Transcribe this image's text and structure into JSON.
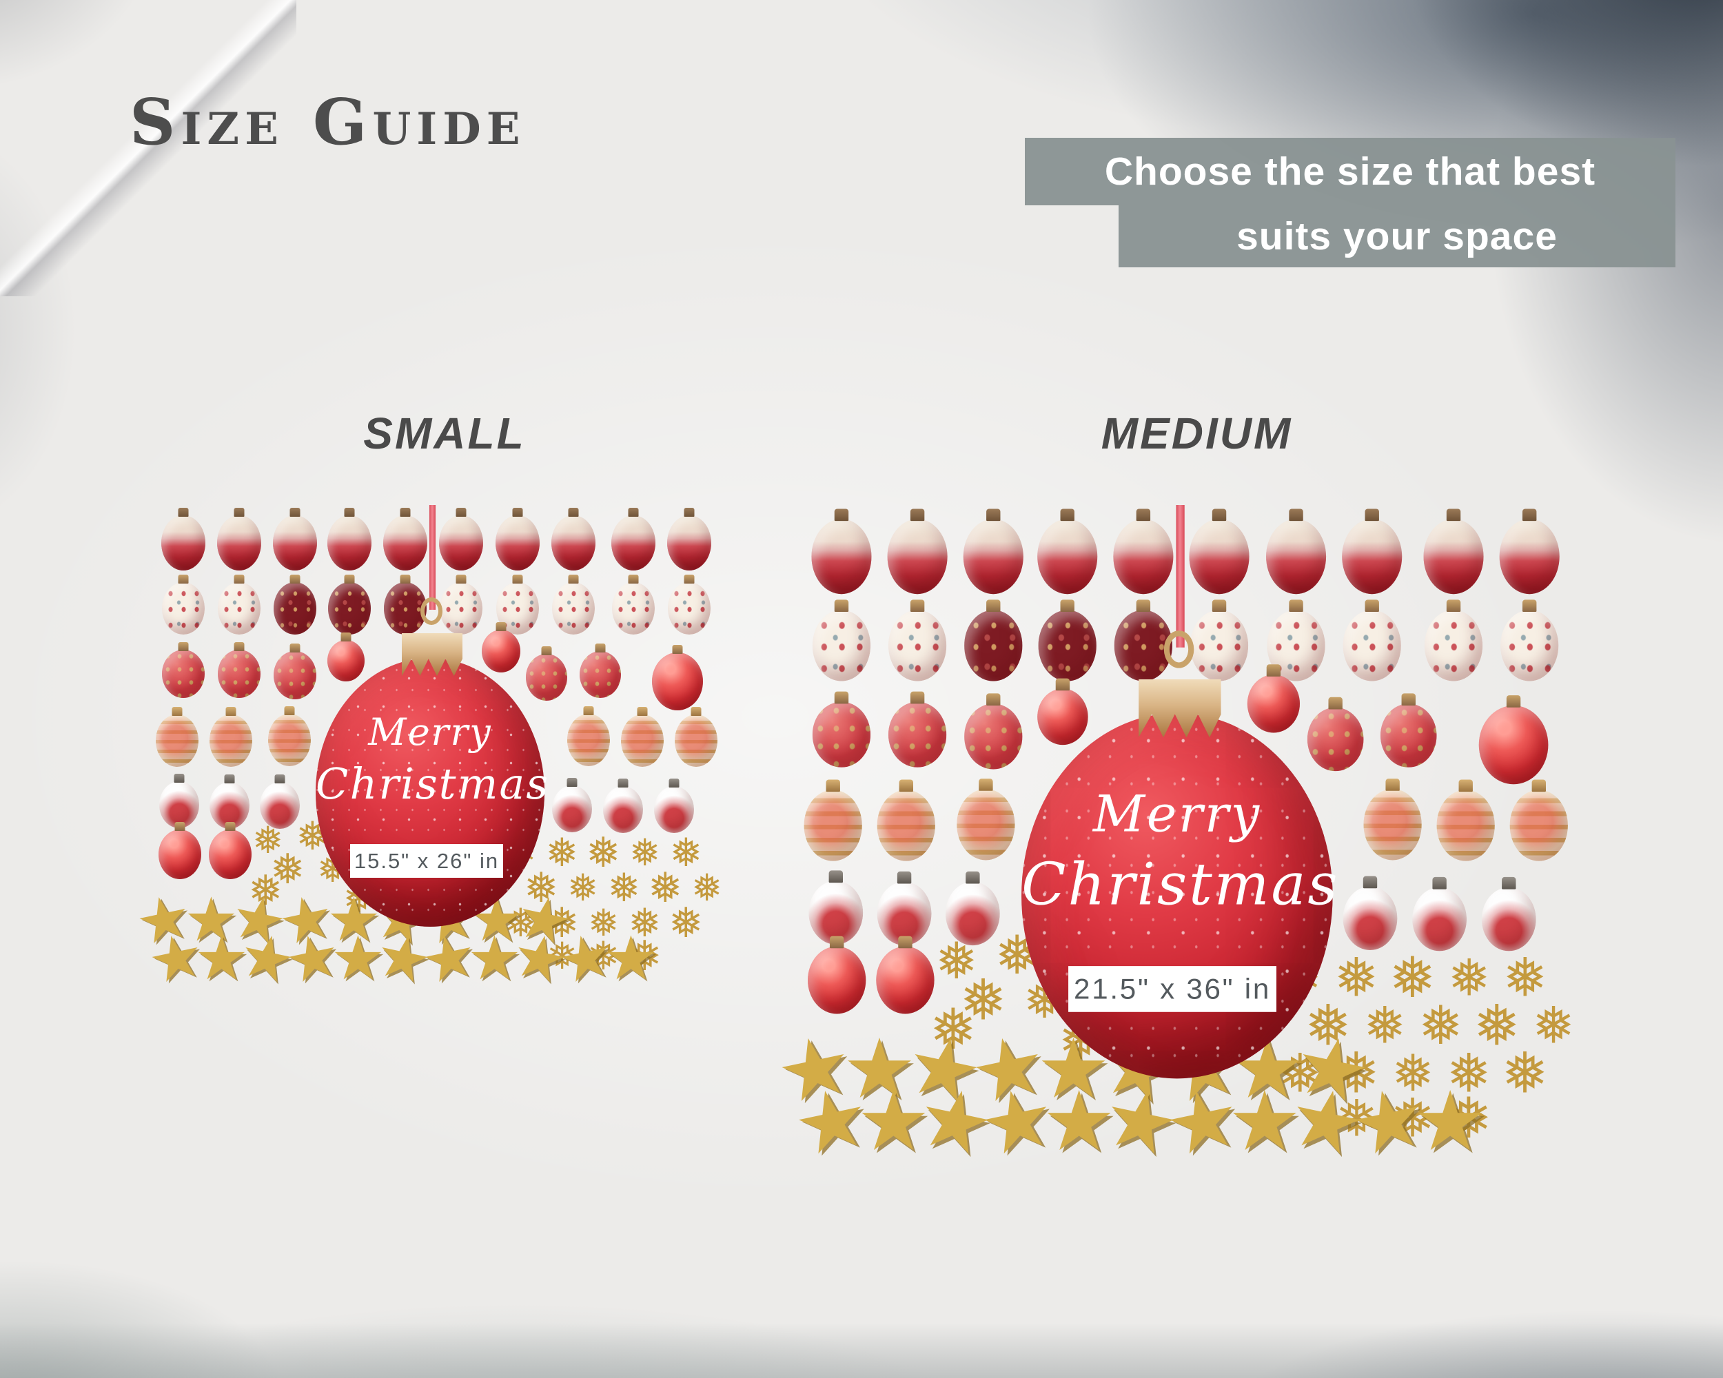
{
  "page": {
    "title": "Size Guide"
  },
  "banner": {
    "line1": "Choose the size that best",
    "line2": "suits your space"
  },
  "clusters": [
    {
      "id": "small",
      "label": "SMALL",
      "message_line1": "Merry",
      "message_line2": "Christmas",
      "size_label": "15.5\" x 26\" in"
    },
    {
      "id": "medium",
      "label": "MEDIUM",
      "message_line1": "Merry",
      "message_line2": "Christmas",
      "size_label": "21.5\" x 36\" in"
    }
  ],
  "colors": {
    "banner_bg": "#8a9292",
    "banner_text": "#ffffff",
    "title_text": "#4d4d4d",
    "label_text": "#4a4a4a",
    "ornament_red": "#c62a33",
    "ribbon_red": "#e05560",
    "gold": "#c9a13b",
    "star_gold": "#d3ac46",
    "size_text": "#545a5e"
  },
  "icons": {
    "snowflake": "snowflake-icon",
    "star": "star-icon"
  }
}
